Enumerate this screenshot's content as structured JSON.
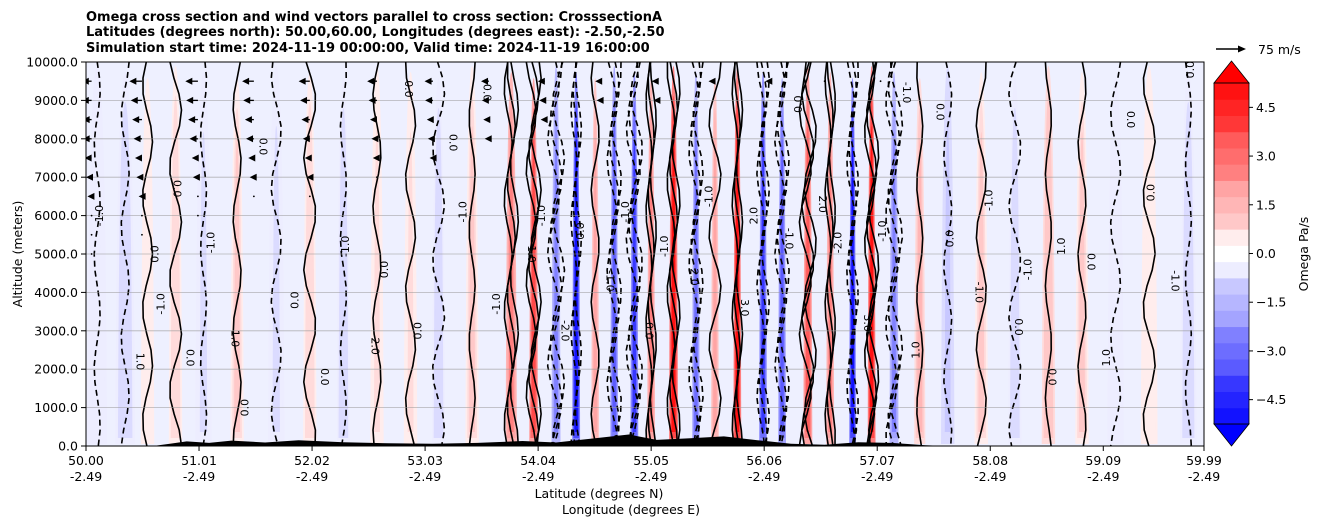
{
  "chart_data": {
    "type": "heatmap",
    "title_lines": [
      "Omega cross section and wind vectors parallel to cross section: CrosssectionA",
      "Latitudes (degrees north): 50.00,60.00, Longitudes (degrees east): -2.50,-2.50",
      "Simulation start time: 2024-11-19 00:00:00, Valid time: 2024-11-19 16:00:00"
    ],
    "xlabel_lines": [
      "Latitude (degrees N)",
      "Longitude (degrees E)"
    ],
    "ylabel": "Altitude (meters)",
    "x_range": [
      50.0,
      59.99
    ],
    "y_range": [
      0,
      10000
    ],
    "x_ticks": [
      {
        "lat": 50.0,
        "lat_label": "50.00",
        "lon_label": "-2.49"
      },
      {
        "lat": 51.01,
        "lat_label": "51.01",
        "lon_label": "-2.49"
      },
      {
        "lat": 52.02,
        "lat_label": "52.02",
        "lon_label": "-2.49"
      },
      {
        "lat": 53.03,
        "lat_label": "53.03",
        "lon_label": "-2.49"
      },
      {
        "lat": 54.04,
        "lat_label": "54.04",
        "lon_label": "-2.49"
      },
      {
        "lat": 55.05,
        "lat_label": "55.05",
        "lon_label": "-2.49"
      },
      {
        "lat": 56.06,
        "lat_label": "56.06",
        "lon_label": "-2.49"
      },
      {
        "lat": 57.07,
        "lat_label": "57.07",
        "lon_label": "-2.49"
      },
      {
        "lat": 58.08,
        "lat_label": "58.08",
        "lon_label": "-2.49"
      },
      {
        "lat": 59.09,
        "lat_label": "59.09",
        "lon_label": "-2.49"
      },
      {
        "lat": 59.99,
        "lat_label": "59.99",
        "lon_label": "-2.49"
      }
    ],
    "y_ticks": [
      {
        "v": 0,
        "label": "0.0"
      },
      {
        "v": 1000,
        "label": "1000.0"
      },
      {
        "v": 2000,
        "label": "2000.0"
      },
      {
        "v": 3000,
        "label": "3000.0"
      },
      {
        "v": 4000,
        "label": "4000.0"
      },
      {
        "v": 5000,
        "label": "5000.0"
      },
      {
        "v": 6000,
        "label": "6000.0"
      },
      {
        "v": 7000,
        "label": "7000.0"
      },
      {
        "v": 8000,
        "label": "8000.0"
      },
      {
        "v": 9000,
        "label": "9000.0"
      },
      {
        "v": 10000,
        "label": "10000.0"
      }
    ],
    "grid": true,
    "colorbar": {
      "label": "Omega Pa/s",
      "range": [
        -5.25,
        5.25
      ],
      "ticks": [
        {
          "v": 4.5,
          "label": "4.5"
        },
        {
          "v": 3.0,
          "label": "3.0"
        },
        {
          "v": 1.5,
          "label": "1.5"
        },
        {
          "v": 0.0,
          "label": "0.0"
        },
        {
          "v": -1.5,
          "label": "−1.5"
        },
        {
          "v": -3.0,
          "label": "−3.0"
        },
        {
          "v": -4.5,
          "label": "−4.5"
        }
      ],
      "colors": {
        "positive": "#ff0000",
        "negative": "#0000ff",
        "neutral": "#ffffff"
      }
    },
    "quiver_key_label": "75 m/s",
    "omega_columns": [
      {
        "lat": 50.1,
        "w": 0.18,
        "a": -0.5
      },
      {
        "lat": 50.35,
        "w": 0.18,
        "a": -0.8
      },
      {
        "lat": 50.55,
        "w": 0.12,
        "a": 0.5
      },
      {
        "lat": 50.8,
        "w": 0.12,
        "a": 0.8
      },
      {
        "lat": 51.05,
        "w": 0.15,
        "a": -0.6
      },
      {
        "lat": 51.35,
        "w": 0.12,
        "a": 1.0
      },
      {
        "lat": 51.7,
        "w": 0.15,
        "a": -0.6
      },
      {
        "lat": 52.0,
        "w": 0.12,
        "a": 0.9
      },
      {
        "lat": 52.3,
        "w": 0.12,
        "a": -0.8
      },
      {
        "lat": 52.6,
        "w": 0.12,
        "a": 0.6
      },
      {
        "lat": 52.9,
        "w": 0.12,
        "a": 0.7
      },
      {
        "lat": 53.15,
        "w": 0.12,
        "a": -0.9
      },
      {
        "lat": 53.45,
        "w": 0.12,
        "a": 1.0
      },
      {
        "lat": 53.8,
        "w": 0.1,
        "a": 2.6
      },
      {
        "lat": 54.0,
        "w": 0.08,
        "a": 3.8
      },
      {
        "lat": 54.2,
        "w": 0.08,
        "a": -2.5
      },
      {
        "lat": 54.38,
        "w": 0.07,
        "a": -4.8
      },
      {
        "lat": 54.55,
        "w": 0.07,
        "a": 2.0
      },
      {
        "lat": 54.72,
        "w": 0.07,
        "a": -3.5
      },
      {
        "lat": 54.9,
        "w": 0.07,
        "a": -4.0
      },
      {
        "lat": 55.05,
        "w": 0.07,
        "a": 2.5
      },
      {
        "lat": 55.25,
        "w": 0.08,
        "a": 5.0
      },
      {
        "lat": 55.45,
        "w": 0.07,
        "a": -3.0
      },
      {
        "lat": 55.62,
        "w": 0.07,
        "a": 2.0
      },
      {
        "lat": 55.82,
        "w": 0.07,
        "a": 5.0
      },
      {
        "lat": 56.05,
        "w": 0.07,
        "a": -4.0
      },
      {
        "lat": 56.22,
        "w": 0.07,
        "a": -3.5
      },
      {
        "lat": 56.45,
        "w": 0.08,
        "a": 3.5
      },
      {
        "lat": 56.65,
        "w": 0.07,
        "a": 2.5
      },
      {
        "lat": 56.85,
        "w": 0.06,
        "a": -5.0
      },
      {
        "lat": 57.02,
        "w": 0.07,
        "a": 5.0
      },
      {
        "lat": 57.22,
        "w": 0.08,
        "a": -2.5
      },
      {
        "lat": 57.45,
        "w": 0.1,
        "a": 1.5
      },
      {
        "lat": 57.7,
        "w": 0.12,
        "a": -1.2
      },
      {
        "lat": 58.0,
        "w": 0.12,
        "a": 1.0
      },
      {
        "lat": 58.3,
        "w": 0.12,
        "a": -0.8
      },
      {
        "lat": 58.6,
        "w": 0.12,
        "a": 1.3
      },
      {
        "lat": 58.9,
        "w": 0.12,
        "a": 1.0
      },
      {
        "lat": 59.2,
        "w": 0.15,
        "a": -0.5
      },
      {
        "lat": 59.5,
        "w": 0.15,
        "a": 0.4
      },
      {
        "lat": 59.85,
        "w": 0.15,
        "a": -0.9
      }
    ],
    "contour_labels": [
      {
        "lat": 50.15,
        "alt": 6000,
        "text": "-1.0"
      },
      {
        "lat": 50.45,
        "alt": 2200,
        "text": "1.0"
      },
      {
        "lat": 50.65,
        "alt": 5000,
        "text": "0.0"
      },
      {
        "lat": 50.78,
        "alt": 6700,
        "text": "0.0"
      },
      {
        "lat": 50.7,
        "alt": 3700,
        "text": "-1.0"
      },
      {
        "lat": 50.9,
        "alt": 2300,
        "text": "0.0"
      },
      {
        "lat": 51.15,
        "alt": 5300,
        "text": "-1.0"
      },
      {
        "lat": 51.3,
        "alt": 2800,
        "text": "1.0"
      },
      {
        "lat": 51.45,
        "alt": 1000,
        "text": "0.0"
      },
      {
        "lat": 51.55,
        "alt": 7800,
        "text": "0.0"
      },
      {
        "lat": 51.9,
        "alt": 3800,
        "text": "0.0"
      },
      {
        "lat": 52.1,
        "alt": 1800,
        "text": "0.0"
      },
      {
        "lat": 52.35,
        "alt": 5200,
        "text": "-1.0"
      },
      {
        "lat": 52.55,
        "alt": 2600,
        "text": "2.0"
      },
      {
        "lat": 52.7,
        "alt": 4600,
        "text": "0.0"
      },
      {
        "lat": 52.85,
        "alt": 9300,
        "text": "0.0"
      },
      {
        "lat": 53.0,
        "alt": 3000,
        "text": "0.0"
      },
      {
        "lat": 53.25,
        "alt": 7900,
        "text": "0.0"
      },
      {
        "lat": 53.4,
        "alt": 6100,
        "text": "-1.0"
      },
      {
        "lat": 53.55,
        "alt": 9200,
        "text": "0.0"
      },
      {
        "lat": 53.7,
        "alt": 3700,
        "text": "-1.0"
      },
      {
        "lat": 53.95,
        "alt": 5000,
        "text": "1.0"
      },
      {
        "lat": 54.1,
        "alt": 6000,
        "text": "-1.0"
      },
      {
        "lat": 54.25,
        "alt": 3000,
        "text": "-2.0"
      },
      {
        "lat": 54.45,
        "alt": 5600,
        "text": "0.0"
      },
      {
        "lat": 54.65,
        "alt": 4300,
        "text": "-1.0"
      },
      {
        "lat": 54.85,
        "alt": 6100,
        "text": "-1.0"
      },
      {
        "lat": 55.0,
        "alt": 3000,
        "text": "0.0"
      },
      {
        "lat": 55.2,
        "alt": 5200,
        "text": "-1.0"
      },
      {
        "lat": 55.4,
        "alt": 4400,
        "text": "2.0"
      },
      {
        "lat": 55.6,
        "alt": 6500,
        "text": "-1.0"
      },
      {
        "lat": 55.85,
        "alt": 3600,
        "text": "3.0"
      },
      {
        "lat": 56.0,
        "alt": 6000,
        "text": "2.0"
      },
      {
        "lat": 56.25,
        "alt": 5400,
        "text": "-1.0"
      },
      {
        "lat": 56.4,
        "alt": 8900,
        "text": "0.0"
      },
      {
        "lat": 56.55,
        "alt": 6300,
        "text": "2.0"
      },
      {
        "lat": 56.75,
        "alt": 5300,
        "text": "-2.0"
      },
      {
        "lat": 56.95,
        "alt": 3200,
        "text": "3.0"
      },
      {
        "lat": 57.15,
        "alt": 5600,
        "text": "-1.0"
      },
      {
        "lat": 57.3,
        "alt": 9200,
        "text": "-1.0"
      },
      {
        "lat": 57.45,
        "alt": 2500,
        "text": "1.0"
      },
      {
        "lat": 57.6,
        "alt": 8700,
        "text": "0.0"
      },
      {
        "lat": 57.75,
        "alt": 5400,
        "text": "0.0"
      },
      {
        "lat": 57.95,
        "alt": 4000,
        "text": "-1.0"
      },
      {
        "lat": 58.1,
        "alt": 6400,
        "text": "-1.0"
      },
      {
        "lat": 58.3,
        "alt": 3100,
        "text": "0.0"
      },
      {
        "lat": 58.45,
        "alt": 4600,
        "text": "-1.0"
      },
      {
        "lat": 58.6,
        "alt": 1800,
        "text": "0.0"
      },
      {
        "lat": 58.75,
        "alt": 5200,
        "text": "1.0"
      },
      {
        "lat": 58.95,
        "alt": 4800,
        "text": "0.0"
      },
      {
        "lat": 59.15,
        "alt": 2300,
        "text": "1.0"
      },
      {
        "lat": 59.3,
        "alt": 8500,
        "text": "0.0"
      },
      {
        "lat": 59.55,
        "alt": 6600,
        "text": "0.0"
      },
      {
        "lat": 59.7,
        "alt": 4300,
        "text": "-1.0"
      },
      {
        "lat": 59.9,
        "alt": 9800,
        "text": "0.0"
      }
    ],
    "wind_vectors": [
      {
        "lat": 50.05,
        "alt": 9500,
        "u": -0.35
      },
      {
        "lat": 50.05,
        "alt": 9000,
        "u": -0.35
      },
      {
        "lat": 50.05,
        "alt": 8500,
        "u": -0.32
      },
      {
        "lat": 50.05,
        "alt": 8000,
        "u": -0.32
      },
      {
        "lat": 50.05,
        "alt": 7500,
        "u": -0.25
      },
      {
        "lat": 50.05,
        "alt": 7000,
        "u": -0.2
      },
      {
        "lat": 50.05,
        "alt": 6500,
        "u": -0.15
      },
      {
        "lat": 50.05,
        "alt": 6000,
        "u": -0.1
      },
      {
        "lat": 50.05,
        "alt": 5500,
        "u": -0.05
      },
      {
        "lat": 50.05,
        "alt": 5000,
        "u": -0.03
      },
      {
        "lat": 50.5,
        "alt": 9500,
        "u": -0.45
      },
      {
        "lat": 50.5,
        "alt": 9000,
        "u": -0.4
      },
      {
        "lat": 50.5,
        "alt": 8500,
        "u": -0.35
      },
      {
        "lat": 50.5,
        "alt": 8000,
        "u": -0.3
      },
      {
        "lat": 50.5,
        "alt": 7500,
        "u": -0.25
      },
      {
        "lat": 50.5,
        "alt": 7000,
        "u": -0.2
      },
      {
        "lat": 50.5,
        "alt": 6500,
        "u": -0.12
      },
      {
        "lat": 50.5,
        "alt": 6000,
        "u": -0.08
      },
      {
        "lat": 50.5,
        "alt": 5500,
        "u": -0.03
      },
      {
        "lat": 51.0,
        "alt": 9500,
        "u": -0.45
      },
      {
        "lat": 51.0,
        "alt": 9000,
        "u": -0.42
      },
      {
        "lat": 51.0,
        "alt": 8500,
        "u": -0.35
      },
      {
        "lat": 51.0,
        "alt": 8000,
        "u": -0.3
      },
      {
        "lat": 51.0,
        "alt": 7500,
        "u": -0.22
      },
      {
        "lat": 51.0,
        "alt": 7000,
        "u": -0.18
      },
      {
        "lat": 51.0,
        "alt": 6500,
        "u": -0.1
      },
      {
        "lat": 51.0,
        "alt": 6000,
        "u": -0.05
      },
      {
        "lat": 51.5,
        "alt": 9500,
        "u": -0.42
      },
      {
        "lat": 51.5,
        "alt": 9000,
        "u": -0.38
      },
      {
        "lat": 51.5,
        "alt": 8500,
        "u": -0.32
      },
      {
        "lat": 51.5,
        "alt": 8000,
        "u": -0.28
      },
      {
        "lat": 51.5,
        "alt": 7500,
        "u": -0.2
      },
      {
        "lat": 51.5,
        "alt": 7000,
        "u": -0.15
      },
      {
        "lat": 51.5,
        "alt": 6500,
        "u": -0.08
      },
      {
        "lat": 52.0,
        "alt": 9500,
        "u": -0.4
      },
      {
        "lat": 52.0,
        "alt": 9000,
        "u": -0.35
      },
      {
        "lat": 52.0,
        "alt": 8500,
        "u": -0.3
      },
      {
        "lat": 52.0,
        "alt": 8000,
        "u": -0.25
      },
      {
        "lat": 52.0,
        "alt": 7500,
        "u": -0.18
      },
      {
        "lat": 52.0,
        "alt": 7000,
        "u": -0.12
      },
      {
        "lat": 52.0,
        "alt": 6500,
        "u": -0.06
      },
      {
        "lat": 52.6,
        "alt": 9500,
        "u": -0.35
      },
      {
        "lat": 52.6,
        "alt": 9000,
        "u": -0.3
      },
      {
        "lat": 52.6,
        "alt": 8500,
        "u": -0.25
      },
      {
        "lat": 52.6,
        "alt": 8000,
        "u": -0.2
      },
      {
        "lat": 52.6,
        "alt": 7500,
        "u": -0.15
      },
      {
        "lat": 52.6,
        "alt": 7000,
        "u": -0.1
      },
      {
        "lat": 53.1,
        "alt": 9500,
        "u": -0.3
      },
      {
        "lat": 53.1,
        "alt": 9000,
        "u": -0.28
      },
      {
        "lat": 53.1,
        "alt": 8500,
        "u": -0.22
      },
      {
        "lat": 53.1,
        "alt": 8000,
        "u": -0.18
      },
      {
        "lat": 53.1,
        "alt": 7500,
        "u": -0.12
      },
      {
        "lat": 53.6,
        "alt": 9500,
        "u": -0.28
      },
      {
        "lat": 53.6,
        "alt": 9000,
        "u": -0.25
      },
      {
        "lat": 53.6,
        "alt": 8500,
        "u": -0.2
      },
      {
        "lat": 53.6,
        "alt": 8000,
        "u": -0.15
      },
      {
        "lat": 54.1,
        "alt": 9500,
        "u": -0.25
      },
      {
        "lat": 54.1,
        "alt": 9000,
        "u": -0.2
      },
      {
        "lat": 54.1,
        "alt": 8500,
        "u": -0.15
      },
      {
        "lat": 54.6,
        "alt": 9500,
        "u": -0.2
      },
      {
        "lat": 54.6,
        "alt": 9000,
        "u": -0.15
      },
      {
        "lat": 55.1,
        "alt": 9500,
        "u": -0.18
      },
      {
        "lat": 55.1,
        "alt": 9000,
        "u": -0.12
      },
      {
        "lat": 55.6,
        "alt": 9500,
        "u": -0.15
      },
      {
        "lat": 56.1,
        "alt": 9500,
        "u": -0.12
      },
      {
        "lat": 56.6,
        "alt": 9500,
        "u": -0.1
      },
      {
        "lat": 57.1,
        "alt": 9500,
        "u": -0.08
      }
    ],
    "terrain": [
      {
        "lat": 50.6,
        "h": 0
      },
      {
        "lat": 50.75,
        "h": 60
      },
      {
        "lat": 50.9,
        "h": 120
      },
      {
        "lat": 51.1,
        "h": 80
      },
      {
        "lat": 51.3,
        "h": 140
      },
      {
        "lat": 51.6,
        "h": 90
      },
      {
        "lat": 51.9,
        "h": 150
      },
      {
        "lat": 52.3,
        "h": 100
      },
      {
        "lat": 52.7,
        "h": 70
      },
      {
        "lat": 53.1,
        "h": 60
      },
      {
        "lat": 53.5,
        "h": 80
      },
      {
        "lat": 53.9,
        "h": 130
      },
      {
        "lat": 54.2,
        "h": 90
      },
      {
        "lat": 54.6,
        "h": 220
      },
      {
        "lat": 54.85,
        "h": 300
      },
      {
        "lat": 55.1,
        "h": 160
      },
      {
        "lat": 55.4,
        "h": 200
      },
      {
        "lat": 55.7,
        "h": 250
      },
      {
        "lat": 56.0,
        "h": 150
      },
      {
        "lat": 56.3,
        "h": 60
      },
      {
        "lat": 56.6,
        "h": 30
      },
      {
        "lat": 56.9,
        "h": 100
      },
      {
        "lat": 57.2,
        "h": 80
      },
      {
        "lat": 57.5,
        "h": 20
      },
      {
        "lat": 57.7,
        "h": 0
      }
    ]
  }
}
